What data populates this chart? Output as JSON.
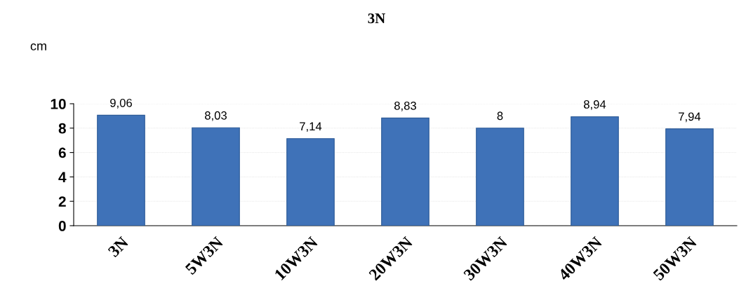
{
  "chart_data": {
    "type": "bar",
    "title": "3N",
    "ylabel": "cm",
    "categories": [
      "3N",
      "5W3N",
      "10W3N",
      "20W3N",
      "30W3N",
      "40W3N",
      "50W3N"
    ],
    "values": [
      9.06,
      8.03,
      7.14,
      8.83,
      8,
      8.94,
      7.94
    ],
    "value_labels": [
      "9,06",
      "8,03",
      "7,14",
      "8,83",
      "8",
      "8,94",
      "7,94"
    ],
    "color": "#3f72b8",
    "ylim": [
      0,
      10
    ],
    "yticks": [
      0,
      2,
      4,
      6,
      8,
      10
    ],
    "grid": "y"
  }
}
